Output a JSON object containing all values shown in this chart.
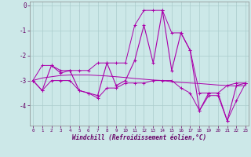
{
  "xlabel": "Windchill (Refroidissement éolien,°C)",
  "x": [
    0,
    1,
    2,
    3,
    4,
    5,
    6,
    7,
    8,
    9,
    10,
    11,
    12,
    13,
    14,
    15,
    16,
    17,
    18,
    19,
    20,
    21,
    22,
    23
  ],
  "y_main": [
    -3.0,
    -3.4,
    -2.4,
    -2.7,
    -2.6,
    -3.4,
    -3.5,
    -3.6,
    -2.3,
    -3.2,
    -3.0,
    -2.2,
    -0.8,
    -2.3,
    -0.2,
    -2.6,
    -1.1,
    -1.8,
    -4.2,
    -3.5,
    -3.5,
    -4.6,
    -3.2,
    -3.1
  ],
  "y_min": [
    -3.0,
    -3.4,
    -3.0,
    -3.0,
    -3.0,
    -3.4,
    -3.5,
    -3.7,
    -3.3,
    -3.3,
    -3.1,
    -3.1,
    -3.1,
    -3.0,
    -3.0,
    -3.0,
    -3.3,
    -3.5,
    -4.2,
    -3.6,
    -3.6,
    -4.6,
    -3.8,
    -3.1
  ],
  "y_max": [
    -3.0,
    -2.4,
    -2.4,
    -2.6,
    -2.6,
    -2.6,
    -2.6,
    -2.3,
    -2.3,
    -2.3,
    -2.3,
    -0.8,
    -0.2,
    -0.2,
    -0.2,
    -1.1,
    -1.1,
    -1.8,
    -3.5,
    -3.5,
    -3.5,
    -3.2,
    -3.1,
    -3.1
  ],
  "y_trend": [
    -3.0,
    -2.9,
    -2.85,
    -2.8,
    -2.78,
    -2.78,
    -2.78,
    -2.8,
    -2.82,
    -2.85,
    -2.88,
    -2.92,
    -2.95,
    -2.98,
    -3.0,
    -3.05,
    -3.08,
    -3.1,
    -3.12,
    -3.15,
    -3.18,
    -3.2,
    -3.22,
    -3.2
  ],
  "line_color": "#aa00aa",
  "background_color": "#cce8e8",
  "grid_color": "#aacccc",
  "yticks": [
    0,
    -1,
    -2,
    -3,
    -4
  ],
  "ylim": [
    -4.8,
    0.15
  ],
  "xlim": [
    -0.3,
    23.3
  ]
}
